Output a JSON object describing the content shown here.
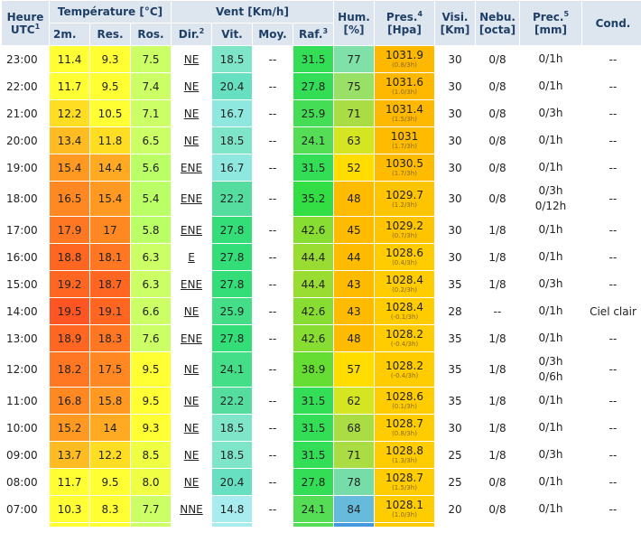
{
  "headers": {
    "heure": "Heure",
    "utc": "UTC",
    "utc_sup": "1",
    "temperature": "Température [°C]",
    "t2m": "2m.",
    "tres": "Res.",
    "tros": "Ros.",
    "vent": "Vent [Km/h]",
    "dir": "Dir.",
    "dir_sup": "2",
    "vit": "Vit.",
    "moy": "Moy.",
    "raf": "Raf.",
    "raf_sup": "3",
    "hum": "Hum.",
    "hum_unit": "[%]",
    "pres": "Pres.",
    "pres_sup": "4",
    "pres_unit": "[Hpa]",
    "visi": "Visi.",
    "visi_unit": "[Km]",
    "nebu": "Nebu.",
    "nebu_unit": "[octa]",
    "prec": "Prec.",
    "prec_sup": "5",
    "prec_unit": "[mm]",
    "cond": "Cond."
  },
  "rows": [
    {
      "time": "23:00",
      "t2m": "11.4",
      "res": "9.3",
      "ros": "7.5",
      "dir": "NE",
      "vit": "18.5",
      "moy": "--",
      "raf": "31.5",
      "hum": "77",
      "pres": "1031.9",
      "pres_trend": "(0.8/3h)",
      "visi": "30",
      "nebu": "0/8",
      "prec": [
        "0/1h"
      ],
      "cond": "--",
      "c_t2m": "#ffff33",
      "c_res": "#ffff33",
      "c_ros": "#ccff66",
      "c_vit": "#7fe5c8",
      "c_raf": "#33dd55",
      "c_hum": "#7fe0a8",
      "c_pres": "#ffb800"
    },
    {
      "time": "22:00",
      "t2m": "11.7",
      "res": "9.5",
      "ros": "7.4",
      "dir": "NE",
      "vit": "20.4",
      "moy": "--",
      "raf": "27.8",
      "hum": "75",
      "pres": "1031.6",
      "pres_trend": "(1.0/3h)",
      "visi": "30",
      "nebu": "0/8",
      "prec": [
        "0/1h"
      ],
      "cond": "--",
      "c_t2m": "#ffff33",
      "c_res": "#ffff33",
      "c_ros": "#ccff66",
      "c_vit": "#66e0c0",
      "c_raf": "#33dd55",
      "c_hum": "#99e066",
      "c_pres": "#ffb800"
    },
    {
      "time": "21:00",
      "t2m": "12.2",
      "res": "10.5",
      "ros": "7.1",
      "dir": "NE",
      "vit": "16.7",
      "moy": "--",
      "raf": "25.9",
      "hum": "71",
      "pres": "1031.4",
      "pres_trend": "(1.5/3h)",
      "visi": "30",
      "nebu": "0/8",
      "prec": [
        "0/3h"
      ],
      "cond": "--",
      "c_t2m": "#ffdd22",
      "c_res": "#ffff33",
      "c_ros": "#ccff66",
      "c_vit": "#8ee8e0",
      "c_raf": "#44dd55",
      "c_hum": "#aadd44",
      "c_pres": "#ffb800"
    },
    {
      "time": "20:00",
      "t2m": "13.4",
      "res": "11.8",
      "ros": "6.5",
      "dir": "NE",
      "vit": "18.5",
      "moy": "--",
      "raf": "24.1",
      "hum": "63",
      "pres": "1031",
      "pres_trend": "(1.7/3h)",
      "visi": "30",
      "nebu": "0/8",
      "prec": [
        "0/1h"
      ],
      "cond": "--",
      "c_t2m": "#ffbb22",
      "c_res": "#ffdd22",
      "c_ros": "#ccff66",
      "c_vit": "#7fe5c8",
      "c_raf": "#55dd55",
      "c_hum": "#d4e622",
      "c_pres": "#ffbb00"
    },
    {
      "time": "19:00",
      "t2m": "15.4",
      "res": "14.4",
      "ros": "5.6",
      "dir": "ENE",
      "vit": "16.7",
      "moy": "--",
      "raf": "31.5",
      "hum": "52",
      "pres": "1030.5",
      "pres_trend": "(1.7/3h)",
      "visi": "30",
      "nebu": "0/8",
      "prec": [
        "0/1h"
      ],
      "cond": "--",
      "c_t2m": "#ff9922",
      "c_res": "#ffaa22",
      "c_ros": "#bbff66",
      "c_vit": "#8ee8e0",
      "c_raf": "#33dd55",
      "c_hum": "#ffdd00",
      "c_pres": "#ffbb00"
    },
    {
      "time": "18:00",
      "t2m": "16.5",
      "res": "15.4",
      "ros": "5.4",
      "dir": "ENE",
      "vit": "22.2",
      "moy": "--",
      "raf": "35.2",
      "hum": "48",
      "pres": "1029.7",
      "pres_trend": "(1.2/3h)",
      "visi": "30",
      "nebu": "0/8",
      "prec": [
        "0/3h",
        "0/12h"
      ],
      "cond": "--",
      "c_t2m": "#ff8822",
      "c_res": "#ff9922",
      "c_ros": "#bbff66",
      "c_vit": "#55dda0",
      "c_raf": "#33dd44",
      "c_hum": "#ffbb00",
      "c_pres": "#ffc400"
    },
    {
      "time": "17:00",
      "t2m": "17.9",
      "res": "17",
      "ros": "5.8",
      "dir": "ENE",
      "vit": "27.8",
      "moy": "--",
      "raf": "42.6",
      "hum": "45",
      "pres": "1029.2",
      "pres_trend": "(0.7/3h)",
      "visi": "30",
      "nebu": "1/8",
      "prec": [
        "0/1h"
      ],
      "cond": "--",
      "c_t2m": "#ff7722",
      "c_res": "#ff8822",
      "c_ros": "#bbff66",
      "c_vit": "#33dd77",
      "c_raf": "#88dd33",
      "c_hum": "#ffbb00",
      "c_pres": "#ffc400"
    },
    {
      "time": "16:00",
      "t2m": "18.8",
      "res": "18.1",
      "ros": "6.3",
      "dir": "E",
      "vit": "27.8",
      "moy": "--",
      "raf": "44.4",
      "hum": "44",
      "pres": "1028.6",
      "pres_trend": "(0.4/3h)",
      "visi": "30",
      "nebu": "1/8",
      "prec": [
        "0/1h"
      ],
      "cond": "--",
      "c_t2m": "#ff6622",
      "c_res": "#ff7722",
      "c_ros": "#ccff66",
      "c_vit": "#33dd77",
      "c_raf": "#99dd33",
      "c_hum": "#ffbb00",
      "c_pres": "#ffcc00"
    },
    {
      "time": "15:00",
      "t2m": "19.2",
      "res": "18.7",
      "ros": "6.3",
      "dir": "ENE",
      "vit": "27.8",
      "moy": "--",
      "raf": "44.4",
      "hum": "43",
      "pres": "1028.4",
      "pres_trend": "(0.2/3h)",
      "visi": "35",
      "nebu": "1/8",
      "prec": [
        "0/3h"
      ],
      "cond": "--",
      "c_t2m": "#ff6622",
      "c_res": "#ff6622",
      "c_ros": "#ccff66",
      "c_vit": "#33dd77",
      "c_raf": "#99dd33",
      "c_hum": "#ffbb00",
      "c_pres": "#ffcc00"
    },
    {
      "time": "14:00",
      "t2m": "19.5",
      "res": "19.1",
      "ros": "6.6",
      "dir": "NE",
      "vit": "25.9",
      "moy": "--",
      "raf": "42.6",
      "hum": "43",
      "pres": "1028.4",
      "pres_trend": "(-0.1/3h)",
      "visi": "28",
      "nebu": "--",
      "prec": [
        "0/1h"
      ],
      "cond": "Ciel clair",
      "c_t2m": "#ff5522",
      "c_res": "#ff6622",
      "c_ros": "#ccff66",
      "c_vit": "#44dd88",
      "c_raf": "#88dd33",
      "c_hum": "#ffbb00",
      "c_pres": "#ffcc00"
    },
    {
      "time": "13:00",
      "t2m": "18.9",
      "res": "18.3",
      "ros": "7.6",
      "dir": "ENE",
      "vit": "27.8",
      "moy": "--",
      "raf": "42.6",
      "hum": "48",
      "pres": "1028.2",
      "pres_trend": "(-0.4/3h)",
      "visi": "35",
      "nebu": "1/8",
      "prec": [
        "0/1h"
      ],
      "cond": "--",
      "c_t2m": "#ff6622",
      "c_res": "#ff7722",
      "c_ros": "#ccff66",
      "c_vit": "#33dd77",
      "c_raf": "#88dd33",
      "c_hum": "#ffbb00",
      "c_pres": "#ffcc00"
    },
    {
      "time": "12:00",
      "t2m": "18.2",
      "res": "17.5",
      "ros": "9.5",
      "dir": "NE",
      "vit": "24.1",
      "moy": "--",
      "raf": "38.9",
      "hum": "57",
      "pres": "1028.2",
      "pres_trend": "(-0.4/3h)",
      "visi": "35",
      "nebu": "1/8",
      "prec": [
        "0/3h",
        "0/6h"
      ],
      "cond": "--",
      "c_t2m": "#ff7722",
      "c_res": "#ff8822",
      "c_ros": "#ffff33",
      "c_vit": "#44dd88",
      "c_raf": "#66dd33",
      "c_hum": "#ffdd00",
      "c_pres": "#ffcc00"
    },
    {
      "time": "11:00",
      "t2m": "16.8",
      "res": "15.8",
      "ros": "9.5",
      "dir": "NE",
      "vit": "22.2",
      "moy": "--",
      "raf": "31.5",
      "hum": "62",
      "pres": "1028.6",
      "pres_trend": "(0.1/3h)",
      "visi": "35",
      "nebu": "1/8",
      "prec": [
        "0/1h"
      ],
      "cond": "--",
      "c_t2m": "#ff8822",
      "c_res": "#ff9922",
      "c_ros": "#ffff33",
      "c_vit": "#55dda0",
      "c_raf": "#33dd55",
      "c_hum": "#d4e622",
      "c_pres": "#ffcc00"
    },
    {
      "time": "10:00",
      "t2m": "15.2",
      "res": "14",
      "ros": "9.3",
      "dir": "NE",
      "vit": "18.5",
      "moy": "--",
      "raf": "31.5",
      "hum": "68",
      "pres": "1028.7",
      "pres_trend": "(0.8/3h)",
      "visi": "30",
      "nebu": "1/8",
      "prec": [
        "0/1h"
      ],
      "cond": "--",
      "c_t2m": "#ff9922",
      "c_res": "#ffaa22",
      "c_ros": "#ffff33",
      "c_vit": "#7fe5c8",
      "c_raf": "#33dd55",
      "c_hum": "#aadd44",
      "c_pres": "#ffcc00"
    },
    {
      "time": "09:00",
      "t2m": "13.7",
      "res": "12.2",
      "ros": "8.5",
      "dir": "NE",
      "vit": "18.5",
      "moy": "--",
      "raf": "31.5",
      "hum": "71",
      "pres": "1028.8",
      "pres_trend": "(1.3/3h)",
      "visi": "25",
      "nebu": "1/8",
      "prec": [
        "0/3h"
      ],
      "cond": "--",
      "c_t2m": "#ffbb22",
      "c_res": "#ffdd22",
      "c_ros": "#eeff44",
      "c_vit": "#7fe5c8",
      "c_raf": "#33dd55",
      "c_hum": "#aadd44",
      "c_pres": "#ffcc00"
    },
    {
      "time": "08:00",
      "t2m": "11.7",
      "res": "9.5",
      "ros": "8.0",
      "dir": "NE",
      "vit": "20.4",
      "moy": "--",
      "raf": "27.8",
      "hum": "78",
      "pres": "1028.7",
      "pres_trend": "(1.5/3h)",
      "visi": "25",
      "nebu": "0/8",
      "prec": [
        "0/1h"
      ],
      "cond": "--",
      "c_t2m": "#ffff33",
      "c_res": "#ffff33",
      "c_ros": "#eeff44",
      "c_vit": "#66e0c0",
      "c_raf": "#33dd55",
      "c_hum": "#77dda8",
      "c_pres": "#ffcc00"
    },
    {
      "time": "07:00",
      "t2m": "10.3",
      "res": "8.3",
      "ros": "7.7",
      "dir": "NNE",
      "vit": "14.8",
      "moy": "--",
      "raf": "24.1",
      "hum": "84",
      "pres": "1028.1",
      "pres_trend": "(1.0/3h)",
      "visi": "20",
      "nebu": "0/8",
      "prec": [
        "0/1h"
      ],
      "cond": "--",
      "c_t2m": "#ffff33",
      "c_res": "#ffff33",
      "c_ros": "#ccff66",
      "c_vit": "#a8ecef",
      "c_raf": "#55dd55",
      "c_hum": "#66bbdd",
      "c_pres": "#ffcc00"
    }
  ],
  "partial_row": {
    "c_t2m": "#ffff33",
    "c_res": "#ffff33",
    "c_ros": "#ccff66",
    "c_vit": "#a8ecef",
    "c_raf": "#55dd55",
    "c_hum": "#4499dd",
    "c_pres": "#ffcc00"
  }
}
